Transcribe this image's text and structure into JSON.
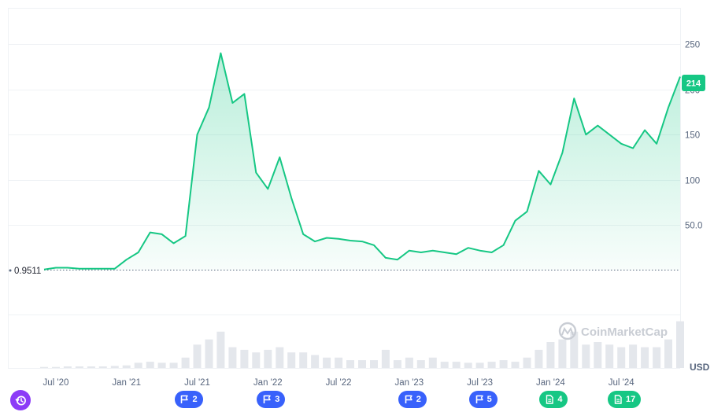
{
  "chart_data": {
    "type": "area",
    "title": "",
    "y_axis": {
      "position": "right",
      "ticks": [
        50,
        100,
        150,
        200,
        250
      ],
      "tick_labels": [
        "50.0",
        "100",
        "150",
        "200",
        "250"
      ],
      "range": [
        0,
        290
      ]
    },
    "x_axis": {
      "tick_labels": [
        "Jul '20",
        "Jan '21",
        "Jul '21",
        "Jan '22",
        "Jul '22",
        "Jan '23",
        "Jul '23",
        "Jan '24",
        "Jul '24"
      ],
      "range": [
        "2020-06",
        "2024-12"
      ]
    },
    "currency_label": "USD",
    "current_value_label": "214",
    "baseline_value_label": "0.9511",
    "line_color": "#16c784",
    "series": [
      {
        "x": [
          "2020-06",
          "2020-07",
          "2020-08",
          "2020-09",
          "2020-10",
          "2020-11",
          "2020-12",
          "2021-01",
          "2021-02",
          "2021-03",
          "2021-04",
          "2021-05",
          "2021-06",
          "2021-07",
          "2021-08",
          "2021-09",
          "2021-10",
          "2021-11",
          "2021-12",
          "2022-01",
          "2022-02",
          "2022-03",
          "2022-04",
          "2022-05",
          "2022-06",
          "2022-07",
          "2022-08",
          "2022-09",
          "2022-10",
          "2022-11",
          "2022-12",
          "2023-01",
          "2023-02",
          "2023-03",
          "2023-04",
          "2023-05",
          "2023-06",
          "2023-07",
          "2023-08",
          "2023-09",
          "2023-10",
          "2023-11",
          "2023-12",
          "2024-01",
          "2024-02",
          "2024-03",
          "2024-04",
          "2024-05",
          "2024-06",
          "2024-07",
          "2024-08",
          "2024-09",
          "2024-10",
          "2024-11",
          "2024-12"
        ],
        "y": [
          1,
          3,
          3,
          2,
          2,
          2,
          2,
          12,
          20,
          42,
          40,
          30,
          38,
          150,
          180,
          240,
          185,
          195,
          108,
          90,
          125,
          80,
          40,
          32,
          36,
          35,
          33,
          32,
          28,
          14,
          12,
          22,
          20,
          22,
          20,
          18,
          25,
          22,
          20,
          28,
          55,
          65,
          110,
          95,
          130,
          190,
          150,
          160,
          150,
          140,
          135,
          155,
          140,
          180,
          214
        ]
      }
    ],
    "volume": {
      "x": [
        "2020-06",
        "2020-07",
        "2020-08",
        "2020-09",
        "2020-10",
        "2020-11",
        "2020-12",
        "2021-01",
        "2021-02",
        "2021-03",
        "2021-04",
        "2021-05",
        "2021-06",
        "2021-07",
        "2021-08",
        "2021-09",
        "2021-10",
        "2021-11",
        "2021-12",
        "2022-01",
        "2022-02",
        "2022-03",
        "2022-04",
        "2022-05",
        "2022-06",
        "2022-07",
        "2022-08",
        "2022-09",
        "2022-10",
        "2022-11",
        "2022-12",
        "2023-01",
        "2023-02",
        "2023-03",
        "2023-04",
        "2023-05",
        "2023-06",
        "2023-07",
        "2023-08",
        "2023-09",
        "2023-10",
        "2023-11",
        "2023-12",
        "2024-01",
        "2024-02",
        "2024-03",
        "2024-04",
        "2024-05",
        "2024-06",
        "2024-07",
        "2024-08",
        "2024-09",
        "2024-10",
        "2024-11",
        "2024-12"
      ],
      "values": [
        0.02,
        0.02,
        0.03,
        0.03,
        0.03,
        0.03,
        0.04,
        0.05,
        0.1,
        0.12,
        0.1,
        0.1,
        0.2,
        0.45,
        0.55,
        0.7,
        0.4,
        0.35,
        0.3,
        0.35,
        0.4,
        0.3,
        0.3,
        0.25,
        0.2,
        0.2,
        0.15,
        0.15,
        0.15,
        0.35,
        0.15,
        0.2,
        0.15,
        0.2,
        0.12,
        0.12,
        0.1,
        0.1,
        0.12,
        0.15,
        0.12,
        0.2,
        0.35,
        0.5,
        0.55,
        0.7,
        0.45,
        0.5,
        0.45,
        0.4,
        0.45,
        0.4,
        0.4,
        0.55,
        0.9
      ]
    },
    "events": [
      {
        "x": "2021-06",
        "icon": "flag-icon",
        "label": "2",
        "color": "#3861fb"
      },
      {
        "x": "2022-01",
        "icon": "flag-icon",
        "label": "3",
        "color": "#3861fb"
      },
      {
        "x": "2023-01",
        "icon": "flag-icon",
        "label": "2",
        "color": "#3861fb"
      },
      {
        "x": "2023-07",
        "icon": "flag-icon",
        "label": "5",
        "color": "#3861fb"
      },
      {
        "x": "2024-01",
        "icon": "document-icon",
        "label": "4",
        "color": "#16c784"
      },
      {
        "x": "2024-07",
        "icon": "document-icon",
        "label": "17",
        "color": "#16c784"
      }
    ],
    "grid": true,
    "history_button_icon": "history-icon"
  },
  "watermark": "CoinMarketCap"
}
